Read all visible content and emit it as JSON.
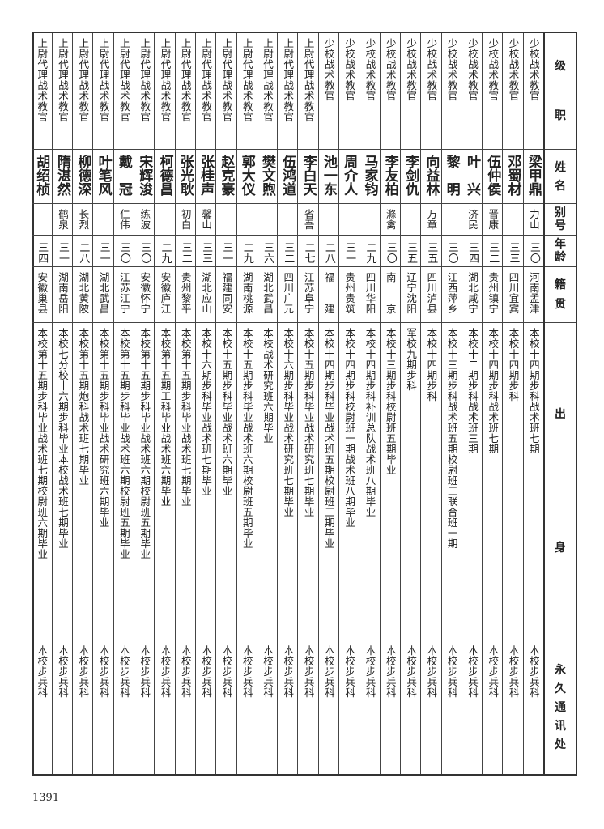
{
  "headers": {
    "rank": [
      "级",
      "职"
    ],
    "name": [
      "姓",
      "名"
    ],
    "alias": [
      "别",
      "号"
    ],
    "age": [
      "年",
      "龄"
    ],
    "native": [
      "籍",
      "贯"
    ],
    "background": [
      "出",
      "身"
    ],
    "address": [
      "永",
      "久",
      "通",
      "讯",
      "处"
    ]
  },
  "rows": [
    {
      "rank": "少校战术教官",
      "name": "梁甲鼎",
      "alias": "力山",
      "age": "三〇",
      "native": "河南孟津",
      "background": "本校十四期步科战术班七期",
      "address": "本校步兵科"
    },
    {
      "rank": "少校战术教官",
      "name": "邓蜀材",
      "alias": "",
      "age": "三三",
      "native": "四川宜宾",
      "background": "本校十四期步科",
      "address": "本校步兵科"
    },
    {
      "rank": "少校战术教官",
      "name": "伍仲侯",
      "alias": "晋康",
      "age": "三二",
      "native": "贵州镇宁",
      "background": "本校十四期步科战术班七期",
      "address": "本校步兵科"
    },
    {
      "rank": "少校战术教官",
      "name": "叶　兴",
      "alias": "济民",
      "age": "三四",
      "native": "湖北咸宁",
      "background": "本校十二期步科战术班三期",
      "address": "本校步兵科"
    },
    {
      "rank": "少校战术教官",
      "name": "黎　明",
      "alias": "",
      "age": "三〇",
      "native": "江西萍乡",
      "background": "本校十三期步科战术班五期校尉班三联合班一期",
      "address": "本校步兵科"
    },
    {
      "rank": "少校战术教官",
      "name": "向益林",
      "alias": "万章",
      "age": "三五",
      "native": "四川泸县",
      "background": "本校十四期步科",
      "address": "本校步兵科"
    },
    {
      "rank": "少校战术教官",
      "name": "李剑仇",
      "alias": "",
      "age": "三五",
      "native": "辽宁沈阳",
      "background": "军校九期步科",
      "address": "本校步兵科"
    },
    {
      "rank": "少校战术教官",
      "name": "李友柏",
      "alias": "滌禽",
      "age": "三〇",
      "native": "南　　京",
      "background": "本校十三期步科校尉班五期毕业",
      "address": "本校步兵科"
    },
    {
      "rank": "少校战术教官",
      "name": "马家钧",
      "alias": "",
      "age": "二九",
      "native": "四川华阳",
      "background": "本校十四期步科补训总队战术班八期毕业",
      "address": "本校步兵科"
    },
    {
      "rank": "少校战术教官",
      "name": "周介人",
      "alias": "",
      "age": "三一",
      "native": "贵州贵筑",
      "background": "本校十四期步科校尉班一期战术班八期毕业",
      "address": "本校步兵科"
    },
    {
      "rank": "少校战术教官",
      "name": "池一东",
      "alias": "",
      "age": "二八",
      "native": "福　　建",
      "background": "本校十四期步科毕业战术班五期校尉班三期毕业",
      "address": "本校步兵科"
    },
    {
      "rank": "上尉代理战术教官",
      "name": "李白天",
      "alias": "省吾",
      "age": "二七",
      "native": "江苏阜宁",
      "background": "本校十五期步科毕业战术研究班七期毕业",
      "address": "本校步兵科"
    },
    {
      "rank": "上尉代理战术教官",
      "name": "伍鸿道",
      "alias": "",
      "age": "三二",
      "native": "四川广元",
      "background": "本校十六期步科毕业战术研究班七期毕业",
      "address": "本校步兵科"
    },
    {
      "rank": "上尉代理战术教官",
      "name": "樊文煦",
      "alias": "",
      "age": "三六",
      "native": "湖北武昌",
      "background": "本校战术研究班六期毕业",
      "address": "本校步兵科"
    },
    {
      "rank": "上尉代理战术教官",
      "name": "郭大仪",
      "alias": "",
      "age": "二九",
      "native": "湖南桃源",
      "background": "本校十五期步科毕业战术班六期校尉班五期毕业",
      "address": "本校步兵科"
    },
    {
      "rank": "上尉代理战术教官",
      "name": "赵克豪",
      "alias": "",
      "age": "三一",
      "native": "福建同安",
      "background": "本校十五期步科毕业战术班六期毕业",
      "address": "本校步兵科"
    },
    {
      "rank": "上尉代理战术教官",
      "name": "张桂声",
      "alias": "馨山",
      "age": "三三",
      "native": "湖北应山",
      "background": "本校十六期步科毕业战术班七期毕业",
      "address": "本校步兵科"
    },
    {
      "rank": "上尉代理战术教官",
      "name": "张光耿",
      "alias": "初白",
      "age": "三二",
      "native": "贵州黎平",
      "background": "本校第十五期步科毕业战术班七期毕业",
      "address": "本校步兵科"
    },
    {
      "rank": "上尉代理战术教官",
      "name": "柯德昌",
      "alias": "",
      "age": "二九",
      "native": "安徽庐江",
      "background": "本校第十五期工科毕业战术班六期毕业",
      "address": "本校步兵科"
    },
    {
      "rank": "上尉代理战术教官",
      "name": "宋辉浚",
      "alias": "练波",
      "age": "三〇",
      "native": "安徽怀宁",
      "background": "本校第十五期步科毕业战术班六期校尉班五期毕业",
      "address": "本校步兵科"
    },
    {
      "rank": "上尉代理战术教官",
      "name": "戴　冠",
      "alias": "仁伟",
      "age": "三〇",
      "native": "江苏江宁",
      "background": "本校第十五期步科毕业战术班六期校尉班五期毕业",
      "address": "本校步兵科"
    },
    {
      "rank": "上尉代理战术教官",
      "name": "叶笔风",
      "alias": "",
      "age": "三一",
      "native": "湖北武昌",
      "background": "本校第十五期步科毕业战术研究班六期毕业",
      "address": "本校步兵科"
    },
    {
      "rank": "上尉代理战术教官",
      "name": "柳德深",
      "alias": "长烈",
      "age": "二八",
      "native": "湖北黄陂",
      "background": "本校第十五期炮科战术班七期毕业",
      "address": "本校步兵科"
    },
    {
      "rank": "上尉代理战术教官",
      "name": "隋湛然",
      "alias": "鹤泉",
      "age": "三一",
      "native": "湖南岳阳",
      "background": "本校七分校十六期步科毕业本校战术班七期毕业",
      "address": "本校步兵科"
    },
    {
      "rank": "上尉代理战术教官",
      "name": "胡绍桢",
      "alias": "",
      "age": "三四",
      "native": "安徽巢县",
      "background": "本校第十五期步科毕业战术班七期校尉班六期毕业",
      "address": "本校步兵科"
    }
  ],
  "page_number": "1391"
}
